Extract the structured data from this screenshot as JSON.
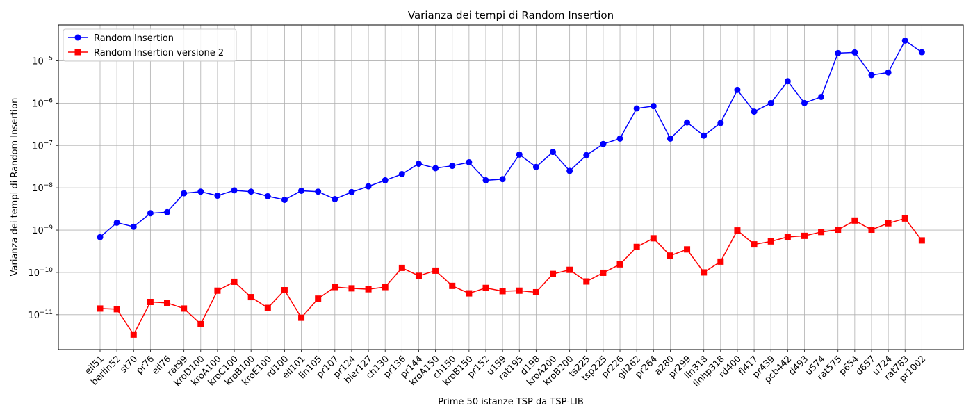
{
  "chart_data": {
    "type": "line",
    "title": "Varianza dei tempi di Random Insertion",
    "xlabel": "Prime 50 istanze TSP da TSP-LIB",
    "ylabel": "Varianza dei tempi di Random Insertion",
    "yscale": "log",
    "ylim": [
      1.5e-12,
      7e-05
    ],
    "yticks": [
      {
        "value": 1e-11,
        "base": "10",
        "exp": "−11"
      },
      {
        "value": 1e-10,
        "base": "10",
        "exp": "−10"
      },
      {
        "value": 1e-09,
        "base": "10",
        "exp": "−9"
      },
      {
        "value": 1e-08,
        "base": "10",
        "exp": "−8"
      },
      {
        "value": 1e-07,
        "base": "10",
        "exp": "−7"
      },
      {
        "value": 1e-06,
        "base": "10",
        "exp": "−6"
      },
      {
        "value": 1e-05,
        "base": "10",
        "exp": "−5"
      }
    ],
    "grid": true,
    "legend_position": "top-left",
    "categories": [
      "eil51",
      "berlin52",
      "st70",
      "pr76",
      "eil76",
      "rat99",
      "kroD100",
      "kroA100",
      "kroC100",
      "kroB100",
      "kroE100",
      "rd100",
      "eil101",
      "lin105",
      "pr107",
      "pr124",
      "bier127",
      "ch130",
      "pr136",
      "pr144",
      "kroA150",
      "ch150",
      "kroB150",
      "pr152",
      "u159",
      "rat195",
      "d198",
      "kroA200",
      "kroB200",
      "ts225",
      "tsp225",
      "pr226",
      "gil262",
      "pr264",
      "a280",
      "pr299",
      "lin318",
      "linhp318",
      "rd400",
      "fl417",
      "pr439",
      "pcb442",
      "d493",
      "u574",
      "rat575",
      "p654",
      "d657",
      "u724",
      "rat783",
      "pr1002"
    ],
    "series": [
      {
        "name": "Random Insertion",
        "color": "#0000ff",
        "marker": "circle",
        "values": [
          6.8e-10,
          1.5e-09,
          1.2e-09,
          2.5e-09,
          2.65e-09,
          7.4e-09,
          8.1e-09,
          6.5e-09,
          8.7e-09,
          8.1e-09,
          6.3e-09,
          5.2e-09,
          8.5e-09,
          8.1e-09,
          5.4e-09,
          7.9e-09,
          1.08e-08,
          1.5e-08,
          2.1e-08,
          3.7e-08,
          2.9e-08,
          3.3e-08,
          4e-08,
          1.5e-08,
          1.6e-08,
          6.1e-08,
          3.1e-08,
          7e-08,
          2.5e-08,
          5.9e-08,
          1.08e-07,
          1.45e-07,
          7.5e-07,
          8.5e-07,
          1.45e-07,
          3.5e-07,
          1.7e-07,
          3.4e-07,
          2.05e-06,
          6.3e-07,
          1e-06,
          3.3e-06,
          1e-06,
          1.4e-06,
          1.52e-05,
          1.58e-05,
          4.6e-06,
          5.3e-06,
          3e-05,
          1.6e-05
        ]
      },
      {
        "name": "Random Insertion versione 2",
        "color": "#ff0000",
        "marker": "square",
        "values": [
          1.4e-11,
          1.35e-11,
          3.4e-12,
          2e-11,
          1.9e-11,
          1.4e-11,
          6e-12,
          3.7e-11,
          6e-11,
          2.6e-11,
          1.45e-11,
          3.8e-11,
          8.5e-12,
          2.4e-11,
          4.5e-11,
          4.2e-11,
          4e-11,
          4.5e-11,
          1.28e-10,
          8.3e-11,
          1.1e-10,
          4.8e-11,
          3.2e-11,
          4.3e-11,
          3.6e-11,
          3.7e-11,
          3.4e-11,
          9.2e-11,
          1.15e-10,
          6.1e-11,
          9.8e-11,
          1.55e-10,
          4e-10,
          6.4e-10,
          2.5e-10,
          3.5e-10,
          1e-10,
          1.8e-10,
          9.8e-10,
          4.6e-10,
          5.4e-10,
          6.9e-10,
          7.3e-10,
          9e-10,
          1.02e-09,
          1.68e-09,
          1.02e-09,
          1.45e-09,
          1.88e-09,
          5.7e-10
        ]
      }
    ]
  }
}
